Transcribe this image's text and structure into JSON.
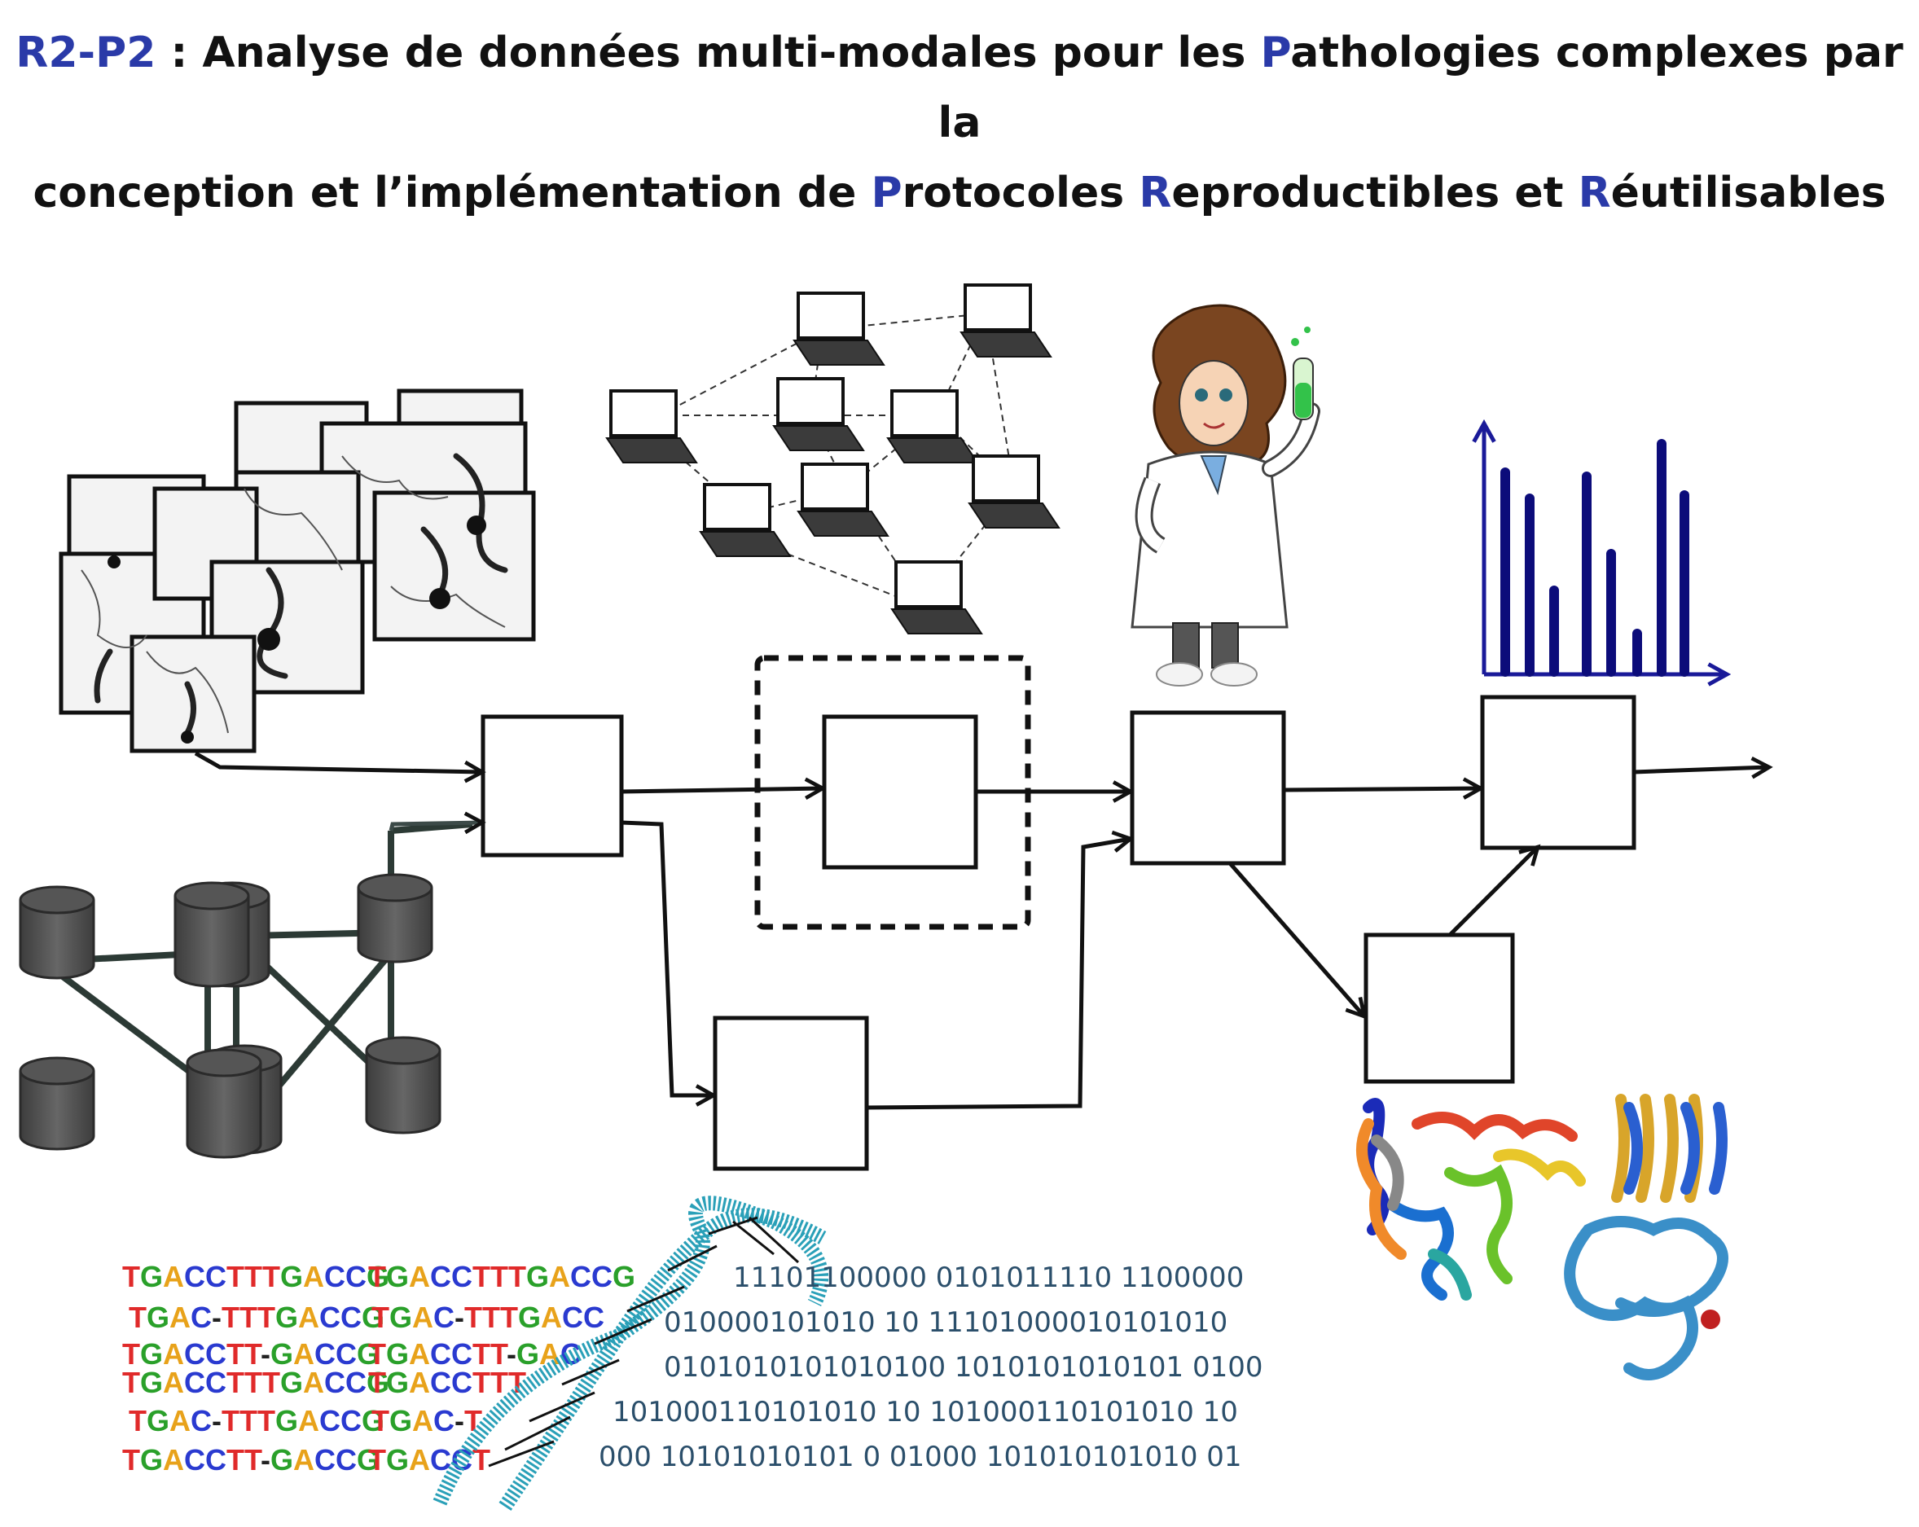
{
  "title": {
    "code": "R2-P2",
    "sep": " : ",
    "line1_a": "Analyse de données multi-modales pour les ",
    "P1": "P",
    "line1_b": "athologies complexes par la",
    "line2_a": "conception et l’implémentation de ",
    "P2": "P",
    "line2_b": "rotocoles ",
    "R1": "R",
    "line2_c": "eproductibles et ",
    "R2": "R",
    "line2_d": "éutilisables"
  },
  "colors": {
    "accent": "#2a3aa8",
    "chart_bars": "#0c0c7a",
    "db_gray": "#555555"
  },
  "sequences": {
    "left": [
      "TGACCTTTGACCG",
      "TGAC-TTTGACCG",
      "TGACCTT-GACCG",
      "TGACCTTTGACCG",
      "TGAC-TTTGACCG",
      "TGACCTT-GACCG"
    ],
    "right": [
      "TGACCTTTGACCG",
      "TGAC-TTTGACC",
      "TGACCTT-GAC",
      "TGACCTTT",
      "TGAC-T",
      "TGACCT"
    ]
  },
  "binary": [
    "11101100000 0101011110 1100000",
    "010000101010 10 11101000010101010",
    "0101010101010100 1010101010101 0100",
    "101000110101010 10 101000110101010 10",
    "000 10101010101 0 01000 101010101010 01"
  ],
  "icons": [
    "angiography-images-icon",
    "computer-network-icon",
    "scientist-icon",
    "bar-chart-icon",
    "database-cluster-icon",
    "dna-helix-icon",
    "protein-structure-icon"
  ]
}
